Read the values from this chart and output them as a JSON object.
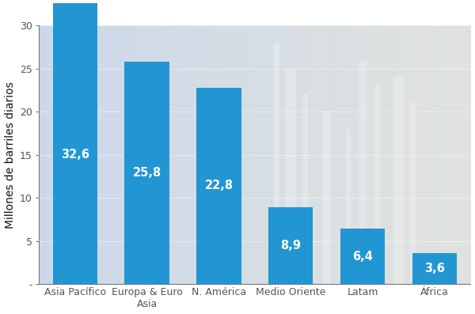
{
  "categories": [
    "Asia Pacífico",
    "Europa & Euro\nAsia",
    "N. América",
    "Medio Oriente",
    "Latam",
    "África"
  ],
  "values": [
    32.6,
    25.8,
    22.8,
    8.9,
    6.4,
    3.6
  ],
  "bar_color": "#2196D3",
  "label_color": "#FFFFFF",
  "ylabel": "Millones de barriles diarios",
  "ylim": [
    0,
    30
  ],
  "yticks": [
    5,
    10,
    15,
    20,
    25,
    30
  ],
  "ytick_labels": [
    "5",
    "10",
    "15",
    "20",
    "25",
    "30"
  ],
  "tick_fontsize": 9,
  "ylabel_fontsize": 10,
  "value_label_size": 10.5,
  "bar_width": 0.62,
  "bg_left": "#C8D8E8",
  "bg_right": "#B0BFCC"
}
